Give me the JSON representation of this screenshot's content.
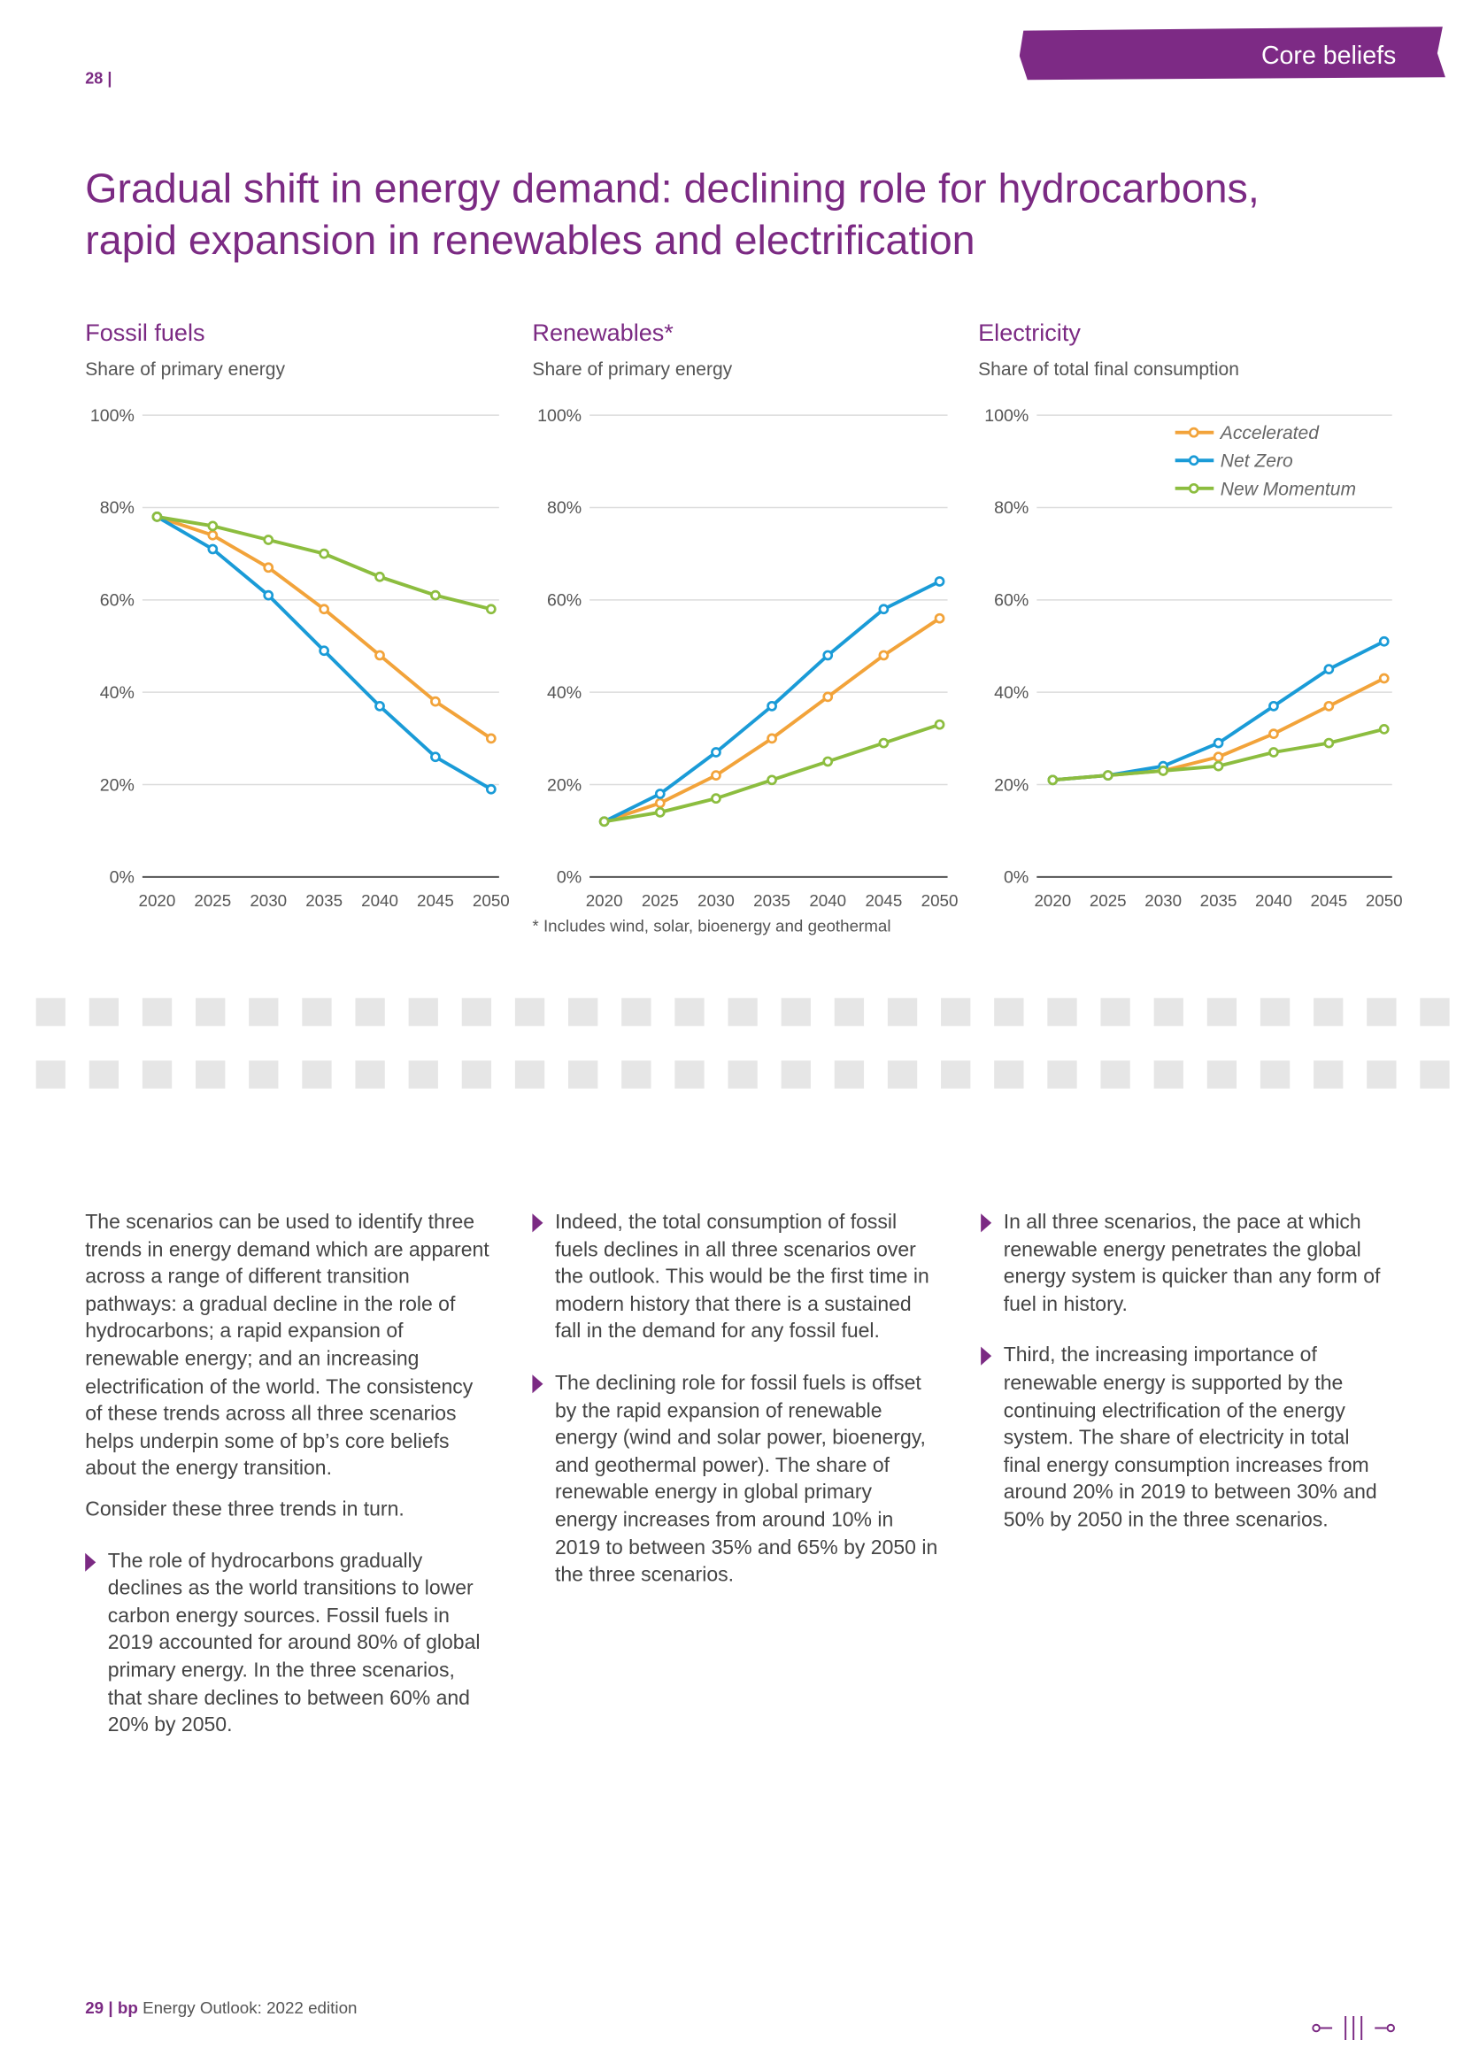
{
  "header": {
    "page_left": "28",
    "tab": "Core beliefs",
    "title_line1": "Gradual shift in energy demand: declining role for hydrocarbons,",
    "title_line2": "rapid expansion in renewables and electrification"
  },
  "chart_data": [
    {
      "type": "line",
      "title": "Fossil fuels",
      "subtitle": "Share of primary energy",
      "x": [
        2020,
        2025,
        2030,
        2035,
        2040,
        2045,
        2050
      ],
      "xlim": [
        2020,
        2050
      ],
      "xticks": [
        2020,
        2025,
        2030,
        2035,
        2040,
        2045,
        2050
      ],
      "ylim": [
        0,
        100
      ],
      "yticks": [
        {
          "value": 0,
          "label": "0%"
        },
        {
          "value": 20,
          "label": "20%"
        },
        {
          "value": 40,
          "label": "40%"
        },
        {
          "value": 60,
          "label": "60%"
        },
        {
          "value": 80,
          "label": "80%"
        },
        {
          "value": 100,
          "label": "100%"
        }
      ],
      "grid": true,
      "series": [
        {
          "color": "#f2a33a",
          "values": [
            78,
            74,
            67,
            58,
            48,
            38,
            30
          ]
        },
        {
          "color": "#1a9bd7",
          "values": [
            78,
            71,
            61,
            49,
            37,
            26,
            19
          ]
        },
        {
          "color": "#8cbd3f",
          "values": [
            78,
            76,
            73,
            70,
            65,
            61,
            58
          ]
        }
      ]
    },
    {
      "type": "line",
      "title": "Renewables*",
      "subtitle": "Share of primary energy",
      "note": "* Includes wind, solar, bioenergy and geothermal",
      "x": [
        2020,
        2025,
        2030,
        2035,
        2040,
        2045,
        2050
      ],
      "xlim": [
        2020,
        2050
      ],
      "xticks": [
        2020,
        2025,
        2030,
        2035,
        2040,
        2045,
        2050
      ],
      "ylim": [
        0,
        100
      ],
      "yticks": [
        {
          "value": 0,
          "label": "0%"
        },
        {
          "value": 20,
          "label": "20%"
        },
        {
          "value": 40,
          "label": "40%"
        },
        {
          "value": 60,
          "label": "60%"
        },
        {
          "value": 80,
          "label": "80%"
        },
        {
          "value": 100,
          "label": "100%"
        }
      ],
      "grid": true,
      "series": [
        {
          "color": "#f2a33a",
          "values": [
            12,
            16,
            22,
            30,
            39,
            48,
            56
          ]
        },
        {
          "color": "#1a9bd7",
          "values": [
            12,
            18,
            27,
            37,
            48,
            58,
            64
          ]
        },
        {
          "color": "#8cbd3f",
          "values": [
            12,
            14,
            17,
            21,
            25,
            29,
            33
          ]
        }
      ]
    },
    {
      "type": "line",
      "title": "Electricity",
      "subtitle": "Share of total final consumption",
      "x": [
        2020,
        2025,
        2030,
        2035,
        2040,
        2045,
        2050
      ],
      "xlim": [
        2020,
        2050
      ],
      "xticks": [
        2020,
        2025,
        2030,
        2035,
        2040,
        2045,
        2050
      ],
      "ylim": [
        0,
        100
      ],
      "yticks": [
        {
          "value": 0,
          "label": "0%"
        },
        {
          "value": 20,
          "label": "20%"
        },
        {
          "value": 40,
          "label": "40%"
        },
        {
          "value": 60,
          "label": "60%"
        },
        {
          "value": 80,
          "label": "80%"
        },
        {
          "value": 100,
          "label": "100%"
        }
      ],
      "grid": true,
      "legend": "top-right",
      "series": [
        {
          "name": "Accelerated",
          "color": "#f2a33a",
          "values": [
            21,
            22,
            23,
            26,
            31,
            37,
            43
          ]
        },
        {
          "name": "Net Zero",
          "color": "#1a9bd7",
          "values": [
            21,
            22,
            24,
            29,
            37,
            45,
            51
          ]
        },
        {
          "name": "New Momentum",
          "color": "#8cbd3f",
          "values": [
            21,
            22,
            23,
            24,
            27,
            29,
            32
          ]
        }
      ]
    }
  ],
  "body": {
    "col1_p1": "The scenarios can be used to identify three trends in energy demand which are apparent across a range of different transition pathways: a gradual decline in the role of hydrocarbons; a rapid expansion of renewable energy; and an increasing electrification of the world. The consistency of these trends across all three scenarios helps underpin some of bp’s core beliefs about the energy transition.",
    "col1_p2": "Consider these three trends in turn.",
    "col1_b1": "The role of hydrocarbons gradually declines as the world transitions to lower carbon energy sources. Fossil fuels in 2019 accounted for around 80% of global primary energy. In the three scenarios, that share declines to between 60% and 20% by 2050.",
    "col2_b1": "Indeed, the total consumption of fossil fuels declines in all three scenarios over the outlook. This would be the first time in modern history that there is a sustained fall in the demand for any fossil fuel.",
    "col2_b2": "The declining role for fossil fuels is offset by the rapid expansion of renewable energy (wind and solar power, bioenergy, and geothermal power). The share of renewable energy in global primary energy increases from around 10% in 2019 to between 35% and 65% by 2050 in the three scenarios.",
    "col3_b1": "In all three scenarios, the pace at which renewable energy penetrates the global energy system is quicker than any form of fuel in history.",
    "col3_b2": "Third, the increasing importance of renewable energy is supported by the continuing electrification of the energy system. The share of electricity in total final energy consumption increases from around 20% in 2019 to between 30% and 50% by 2050 in the three scenarios."
  },
  "footer": {
    "page": "29",
    "brand": "bp",
    "edition": "Energy Outlook: 2022 edition"
  }
}
